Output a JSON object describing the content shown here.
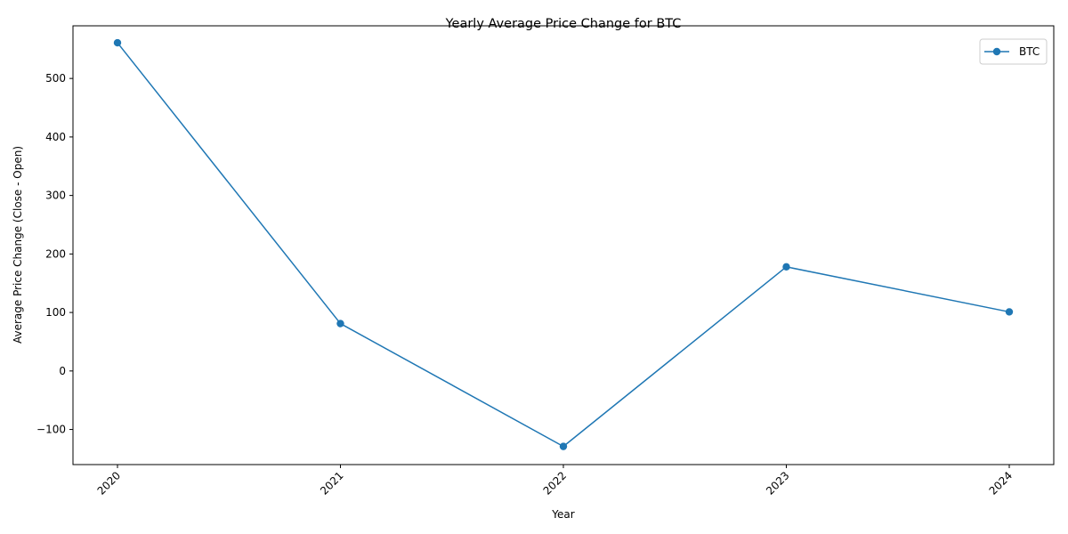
{
  "chart_data": {
    "type": "line",
    "title": "Yearly Average Price Change for BTC",
    "xlabel": "Year",
    "ylabel": "Average Price Change (Close - Open)",
    "categories": [
      "2020",
      "2021",
      "2022",
      "2023",
      "2024"
    ],
    "series": [
      {
        "name": "BTC",
        "values": [
          561,
          81,
          -129,
          178,
          101
        ],
        "color": "#1f77b4",
        "marker": "circle"
      }
    ],
    "ylim": [
      -160,
      590
    ],
    "yticks": [
      -100,
      0,
      100,
      200,
      300,
      400,
      500
    ],
    "ytick_labels": [
      "−100",
      "0",
      "100",
      "200",
      "300",
      "400",
      "500"
    ],
    "xtick_rotation_deg": 45,
    "grid": false,
    "legend": "top-right"
  }
}
